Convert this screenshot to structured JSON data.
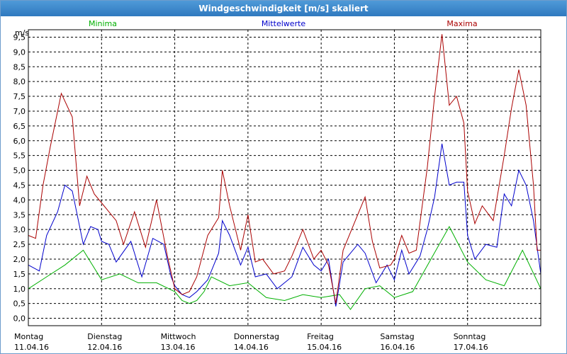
{
  "window": {
    "title": "Windgeschwindigkeit [m/s] skaliert"
  },
  "chart_data": {
    "type": "line",
    "title": "Windgeschwindigkeit [m/s] skaliert",
    "ylabel": "m/s",
    "ylim": [
      -0.25,
      9.75
    ],
    "y_ticks": [
      "0,0",
      "0,5",
      "1,0",
      "1,5",
      "2,0",
      "2,5",
      "3,0",
      "3,5",
      "4,0",
      "4,5",
      "5,0",
      "5,5",
      "6,0",
      "6,5",
      "7,0",
      "7,5",
      "8,0",
      "8,5",
      "9,0",
      "9,5"
    ],
    "y_tick_values": [
      0,
      0.5,
      1,
      1.5,
      2,
      2.5,
      3,
      3.5,
      4,
      4.5,
      5,
      5.5,
      6,
      6.5,
      7,
      7.5,
      8,
      8.5,
      9,
      9.5
    ],
    "x_days": [
      {
        "day": "Montag",
        "date": "11.04.16"
      },
      {
        "day": "Dienstag",
        "date": "12.04.16"
      },
      {
        "day": "Mittwoch",
        "date": "13.04.16"
      },
      {
        "day": "Donnerstag",
        "date": "14.04.16"
      },
      {
        "day": "Freitag",
        "date": "15.04.16"
      },
      {
        "day": "Samstag",
        "date": "16.04.16"
      },
      {
        "day": "Sonntag",
        "date": "17.04.16"
      }
    ],
    "xlim": [
      0,
      7
    ],
    "grid": true,
    "legend_position": "top",
    "series": [
      {
        "name": "Minima",
        "color": "#00b000",
        "x": [
          0,
          0.25,
          0.5,
          0.75,
          1,
          1.25,
          1.5,
          1.75,
          2,
          2.1,
          2.2,
          2.3,
          2.4,
          2.5,
          2.75,
          3,
          3.25,
          3.5,
          3.75,
          4,
          4.25,
          4.4,
          4.6,
          4.8,
          5,
          5.25,
          5.5,
          5.75,
          6,
          6.25,
          6.5,
          6.75,
          7
        ],
        "values": [
          1.0,
          1.4,
          1.8,
          2.3,
          1.3,
          1.5,
          1.2,
          1.2,
          0.9,
          0.6,
          0.5,
          0.6,
          0.9,
          1.4,
          1.1,
          1.2,
          0.7,
          0.6,
          0.8,
          0.7,
          0.8,
          0.3,
          1.0,
          1.1,
          0.7,
          0.9,
          2.0,
          3.1,
          1.9,
          1.3,
          1.1,
          2.3,
          1.0
        ]
      },
      {
        "name": "Mittelwerte",
        "color": "#0000cc",
        "x": [
          0,
          0.15,
          0.25,
          0.4,
          0.5,
          0.6,
          0.75,
          0.85,
          0.95,
          1,
          1.1,
          1.2,
          1.4,
          1.55,
          1.7,
          1.85,
          1.95,
          2,
          2.1,
          2.2,
          2.3,
          2.45,
          2.6,
          2.65,
          2.75,
          2.9,
          3,
          3.1,
          3.25,
          3.4,
          3.5,
          3.6,
          3.75,
          3.9,
          4,
          4.1,
          4.2,
          4.3,
          4.4,
          4.5,
          4.6,
          4.75,
          4.9,
          5,
          5.1,
          5.2,
          5.35,
          5.45,
          5.55,
          5.65,
          5.75,
          5.85,
          5.95,
          6,
          6.1,
          6.25,
          6.4,
          6.5,
          6.6,
          6.7,
          6.8,
          6.9,
          7
        ],
        "values": [
          1.8,
          1.6,
          2.8,
          3.6,
          4.5,
          4.3,
          2.5,
          3.1,
          3.0,
          2.6,
          2.5,
          1.9,
          2.6,
          1.4,
          2.7,
          2.5,
          1.4,
          1.1,
          0.8,
          0.7,
          0.9,
          1.3,
          2.2,
          3.3,
          2.8,
          1.8,
          2.4,
          1.4,
          1.5,
          1.0,
          1.2,
          1.4,
          2.4,
          1.8,
          1.6,
          2.0,
          0.4,
          1.9,
          2.2,
          2.5,
          2.2,
          1.2,
          1.8,
          1.3,
          2.3,
          1.5,
          2.1,
          3.0,
          4.1,
          5.9,
          4.5,
          4.6,
          4.6,
          2.8,
          2.0,
          2.5,
          2.4,
          4.2,
          3.8,
          5.0,
          4.5,
          3.3,
          1.5
        ]
      },
      {
        "name": "Maxima",
        "color": "#aa0000",
        "x": [
          0,
          0.1,
          0.2,
          0.3,
          0.45,
          0.6,
          0.7,
          0.8,
          0.9,
          1,
          1.1,
          1.2,
          1.3,
          1.45,
          1.6,
          1.75,
          1.9,
          2,
          2.1,
          2.2,
          2.3,
          2.45,
          2.6,
          2.65,
          2.75,
          2.9,
          3,
          3.1,
          3.2,
          3.35,
          3.5,
          3.6,
          3.75,
          3.9,
          4,
          4.1,
          4.2,
          4.3,
          4.45,
          4.6,
          4.7,
          4.8,
          4.95,
          5,
          5.1,
          5.2,
          5.3,
          5.45,
          5.55,
          5.65,
          5.75,
          5.85,
          5.95,
          6,
          6.1,
          6.2,
          6.35,
          6.5,
          6.6,
          6.7,
          6.8,
          6.9,
          6.95,
          7
        ],
        "values": [
          2.8,
          2.7,
          4.5,
          5.8,
          7.6,
          6.8,
          3.8,
          4.8,
          4.2,
          3.9,
          3.6,
          3.3,
          2.5,
          3.6,
          2.4,
          4.0,
          2.1,
          1.0,
          0.8,
          0.9,
          1.4,
          2.8,
          3.4,
          5.0,
          3.8,
          2.3,
          3.5,
          1.9,
          2.0,
          1.5,
          1.6,
          2.1,
          3.0,
          2.0,
          2.3,
          1.8,
          0.5,
          2.3,
          3.2,
          4.1,
          2.6,
          1.7,
          1.8,
          2.0,
          2.8,
          2.2,
          2.3,
          5.1,
          7.5,
          9.6,
          7.2,
          7.5,
          6.6,
          4.3,
          3.2,
          3.8,
          3.3,
          5.5,
          7.1,
          8.4,
          7.2,
          4.5,
          2.3,
          2.3
        ]
      }
    ]
  }
}
